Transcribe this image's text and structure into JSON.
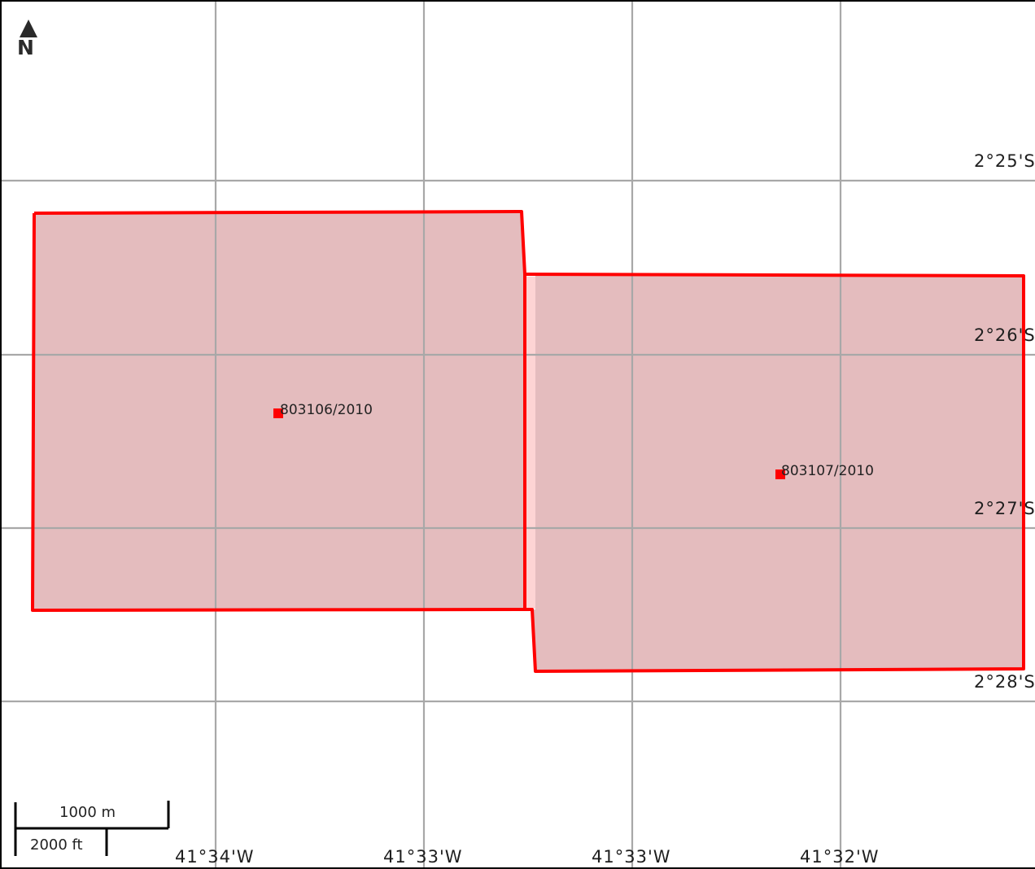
{
  "map": {
    "north_label": "N",
    "colors": {
      "parcel_fill": "#e4bcbe",
      "parcel_stroke": "#ff0000",
      "gap_fill": "#fdd4d4",
      "point_marker": "#ff0000",
      "grid": "#a8a8a8"
    },
    "longitude_labels": [
      "41°34'W",
      "41°33'W",
      "41°33'W",
      "41°32'W"
    ],
    "latitude_labels": [
      "2°25'S",
      "2°26'S",
      "2°27'S",
      "2°28'S"
    ],
    "parcels": [
      {
        "id": "803106/2010"
      },
      {
        "id": "803107/2010"
      }
    ],
    "scale_bar": {
      "metric_label": "1000 m",
      "imperial_label": "2000 ft"
    }
  }
}
